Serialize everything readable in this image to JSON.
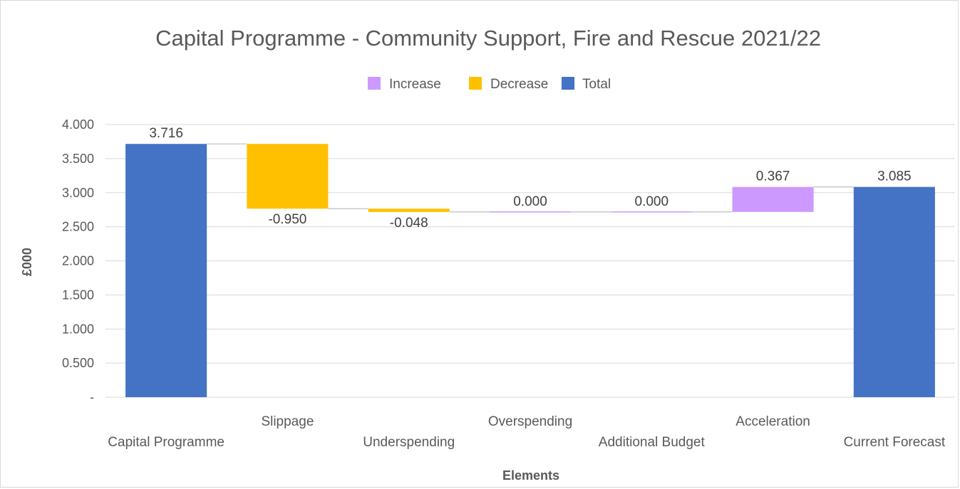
{
  "chart_data": {
    "type": "waterfall",
    "title": "Capital Programme - Community Support, Fire and Rescue 2021/22",
    "xlabel": "Elements",
    "ylabel": "£000",
    "ylim": [
      0,
      4
    ],
    "yticks": [
      {
        "value": 0,
        "label": "-"
      },
      {
        "value": 0.5,
        "label": "0.500"
      },
      {
        "value": 1.0,
        "label": "1.000"
      },
      {
        "value": 1.5,
        "label": "1.500"
      },
      {
        "value": 2.0,
        "label": "2.000"
      },
      {
        "value": 2.5,
        "label": "2.500"
      },
      {
        "value": 3.0,
        "label": "3.000"
      },
      {
        "value": 3.5,
        "label": "3.500"
      },
      {
        "value": 4.0,
        "label": "4.000"
      }
    ],
    "grid": true,
    "legend": {
      "position": "top",
      "items": [
        {
          "name": "Increase",
          "color": "#cc99ff"
        },
        {
          "name": "Decrease",
          "color": "#ffc000"
        },
        {
          "name": "Total",
          "color": "#4472c4"
        }
      ]
    },
    "categories": [
      "Capital Programme",
      "Slippage",
      "Underspending",
      "Overspending",
      "Additional Budget",
      "Acceleration",
      "Current Forecast"
    ],
    "points": [
      {
        "category": "Capital Programme",
        "kind": "Total",
        "value": 3.716,
        "label": "3.716"
      },
      {
        "category": "Slippage",
        "kind": "Decrease",
        "value": -0.95,
        "label": "-0.950"
      },
      {
        "category": "Underspending",
        "kind": "Decrease",
        "value": -0.048,
        "label": "-0.048"
      },
      {
        "category": "Overspending",
        "kind": "Increase",
        "value": 0.0,
        "label": "0.000"
      },
      {
        "category": "Additional Budget",
        "kind": "Increase",
        "value": 0.0,
        "label": "0.000"
      },
      {
        "category": "Acceleration",
        "kind": "Increase",
        "value": 0.367,
        "label": "0.367"
      },
      {
        "category": "Current Forecast",
        "kind": "Total",
        "value": 3.085,
        "label": "3.085"
      }
    ]
  }
}
